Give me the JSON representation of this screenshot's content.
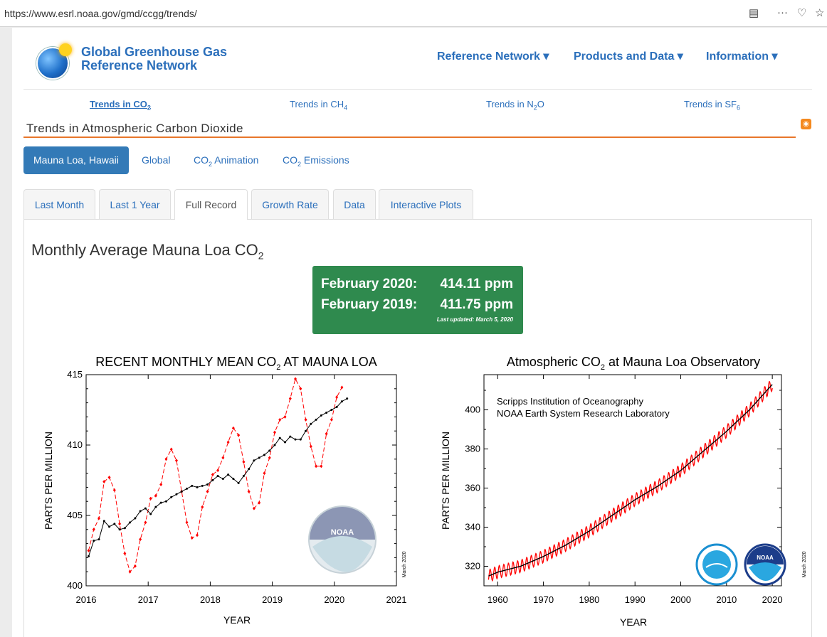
{
  "browser": {
    "url": "https://www.esrl.noaa.gov/gmd/ccgg/trends/"
  },
  "site": {
    "title_line1": "Global Greenhouse Gas",
    "title_line2": "Reference Network"
  },
  "topnav": [
    {
      "label": "Reference Network ▾"
    },
    {
      "label": "Products and Data ▾"
    },
    {
      "label": "Information ▾"
    }
  ],
  "subnav": [
    {
      "label": "Trends in CO",
      "sub": "2"
    },
    {
      "label": "Trends in CH",
      "sub": "4"
    },
    {
      "label": "Trends in N",
      "sub": "2",
      "tail": "O"
    },
    {
      "label": "Trends in SF",
      "sub": "6"
    }
  ],
  "heading": "Trends in Atmospheric Carbon Dioxide",
  "pills": [
    {
      "label": "Mauna Loa, Hawaii"
    },
    {
      "label": "Global"
    },
    {
      "label": "CO",
      "sub": "2",
      "tail": " Animation"
    },
    {
      "label": "CO",
      "sub": "2",
      "tail": " Emissions"
    }
  ],
  "tabs": [
    "Last Month",
    "Last 1 Year",
    "Full Record",
    "Growth Rate",
    "Data",
    "Interactive Plots"
  ],
  "main_title": {
    "text": "Monthly Average Mauna Loa CO",
    "sub": "2"
  },
  "readings": [
    {
      "label": "February 2020:",
      "value": "414.11 ppm"
    },
    {
      "label": "February 2019:",
      "value": "411.75 ppm"
    }
  ],
  "last_updated": "Last updated: March 5, 2020",
  "colors": {
    "accent": "#2b6fbb",
    "green_box": "#2f8a4e",
    "rule": "#e8762a",
    "series_red": "#ff0000"
  },
  "chart_data": [
    {
      "type": "line",
      "title": "RECENT MONTHLY MEAN CO2 AT MAUNA LOA",
      "title_parts": {
        "pre": "RECENT MONTHLY MEAN CO",
        "sub": "2",
        "post": " AT MAUNA LOA"
      },
      "xlabel": "YEAR",
      "ylabel": "PARTS PER MILLION",
      "xlim": [
        2016,
        2021
      ],
      "ylim": [
        400,
        415
      ],
      "xticks": [
        2016,
        2017,
        2018,
        2019,
        2020,
        2021
      ],
      "yticks": [
        400,
        405,
        410,
        415
      ],
      "side_note": "March 2020",
      "series": [
        {
          "color": "#ff0000",
          "style": "dashed",
          "marker": "diamond",
          "x_start": 2016.04,
          "x_step": 0.0833,
          "values": [
            402.5,
            404.0,
            404.8,
            407.4,
            407.7,
            406.8,
            404.4,
            402.3,
            401.0,
            401.4,
            403.3,
            404.5,
            406.2,
            406.4,
            407.2,
            409.0,
            409.7,
            408.9,
            406.7,
            404.5,
            403.4,
            403.6,
            405.6,
            406.7,
            407.9,
            408.2,
            409.1,
            410.2,
            411.2,
            410.7,
            408.8,
            406.7,
            405.5,
            405.9,
            408.0,
            409.1,
            410.9,
            411.8,
            412.0,
            413.3,
            414.7,
            414.0,
            411.8,
            409.9,
            408.5,
            408.5,
            410.8,
            411.8,
            413.4,
            414.1
          ]
        },
        {
          "color": "#000000",
          "style": "solid",
          "marker": "dot",
          "x_start": 2016.04,
          "x_step": 0.0833,
          "values": [
            402.1,
            403.2,
            403.3,
            404.6,
            404.2,
            404.4,
            404.0,
            404.1,
            404.5,
            404.8,
            405.3,
            405.5,
            405.1,
            405.6,
            405.9,
            406.0,
            406.3,
            406.5,
            406.7,
            406.9,
            407.1,
            407.0,
            407.1,
            407.2,
            407.5,
            407.8,
            407.6,
            407.9,
            407.6,
            407.3,
            407.8,
            408.3,
            408.9,
            409.1,
            409.3,
            409.6,
            410.0,
            410.5,
            410.2,
            410.6,
            410.4,
            410.4,
            411.0,
            411.5,
            411.8,
            412.1,
            412.3,
            412.5,
            412.7,
            413.1,
            413.3
          ]
        }
      ]
    },
    {
      "type": "line",
      "title": "Atmospheric CO2 at Mauna Loa Observatory",
      "title_parts": {
        "pre": "Atmospheric CO",
        "sub": "2",
        "post": " at Mauna Loa Observatory"
      },
      "xlabel": "YEAR",
      "ylabel": "PARTS PER MILLION",
      "xlim": [
        1957,
        2022
      ],
      "ylim": [
        310,
        418
      ],
      "xticks": [
        1960,
        1970,
        1980,
        1990,
        2000,
        2010,
        2020
      ],
      "yticks": [
        320,
        340,
        360,
        380,
        400
      ],
      "annotations": [
        "Scripps Institution of Oceanography",
        "NOAA Earth System Research Laboratory"
      ],
      "side_note": "March 2020",
      "series": [
        {
          "color": "#ff0000",
          "style": "solid",
          "note": "monthly mean with seasonal cycle",
          "x": [
            1958,
            1960,
            1965,
            1970,
            1975,
            1980,
            1985,
            1990,
            1995,
            2000,
            2005,
            2010,
            2015,
            2020
          ],
          "values": [
            315,
            317,
            320,
            325,
            331,
            338,
            346,
            354,
            361,
            369,
            379,
            389,
            400,
            413
          ],
          "seasonal_amplitude": 3.2
        },
        {
          "color": "#000000",
          "style": "solid",
          "note": "seasonally corrected trend",
          "x": [
            1958,
            1960,
            1965,
            1970,
            1975,
            1980,
            1985,
            1990,
            1995,
            2000,
            2005,
            2010,
            2015,
            2020
          ],
          "values": [
            315,
            317,
            320,
            325,
            331,
            338,
            346,
            354,
            361,
            369,
            379,
            389,
            400,
            413
          ]
        }
      ]
    }
  ]
}
